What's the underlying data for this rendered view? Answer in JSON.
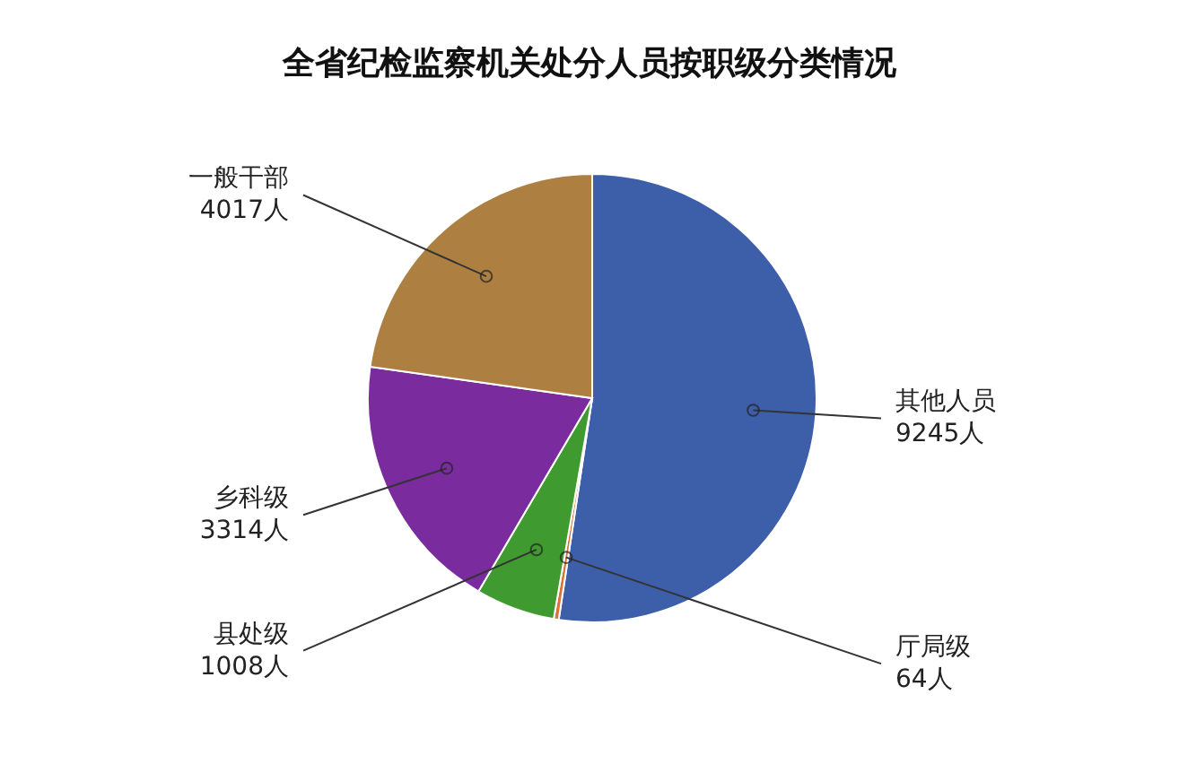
{
  "chart_data": {
    "type": "pie",
    "title": "全省纪检监察机关处分人员按职级分类情况",
    "categories": [
      "其他人员",
      "厅局级",
      "县处级",
      "乡科级",
      "一般干部"
    ],
    "values": [
      9245,
      64,
      1008,
      3314,
      4017
    ],
    "value_labels": [
      "9245人",
      "64人",
      "1008人",
      "3314人",
      "4017人"
    ],
    "colors": [
      "#3d5ea8",
      "#d8723c",
      "#3f9a2f",
      "#7a2c9e",
      "#ad8042"
    ],
    "legend": false
  }
}
